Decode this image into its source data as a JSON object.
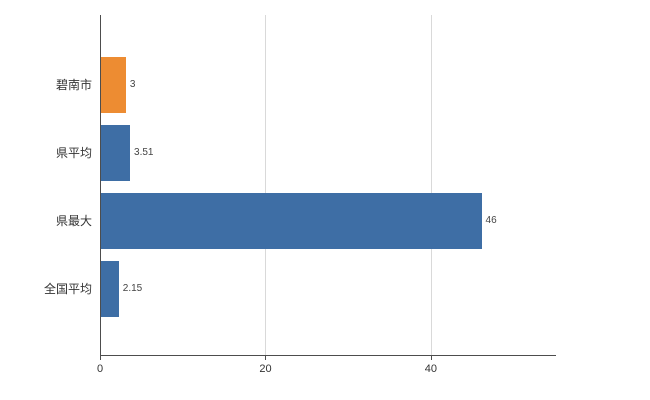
{
  "chart_data": {
    "type": "bar",
    "orientation": "horizontal",
    "title": "",
    "xlabel": "",
    "ylabel": "",
    "categories": [
      "碧南市",
      "県平均",
      "県最大",
      "全国平均"
    ],
    "values": [
      3,
      3.51,
      46,
      2.15
    ],
    "value_labels": [
      "3",
      "3.51",
      "46",
      "2.15"
    ],
    "bar_colors": [
      "#ed8c32",
      "#3e6ea5",
      "#3e6ea5",
      "#3e6ea5"
    ],
    "xlim": [
      0,
      55
    ],
    "xticks": [
      0,
      20,
      40
    ],
    "xtick_labels": [
      "0",
      "20",
      "40"
    ],
    "grid": true,
    "legend": "none"
  },
  "colors": {
    "background": "#ffffff",
    "axis": "#4d4d4d",
    "grid": "#d9d9d9",
    "category_text": "#333333",
    "value_text": "#444444",
    "tick_text": "#333333"
  }
}
